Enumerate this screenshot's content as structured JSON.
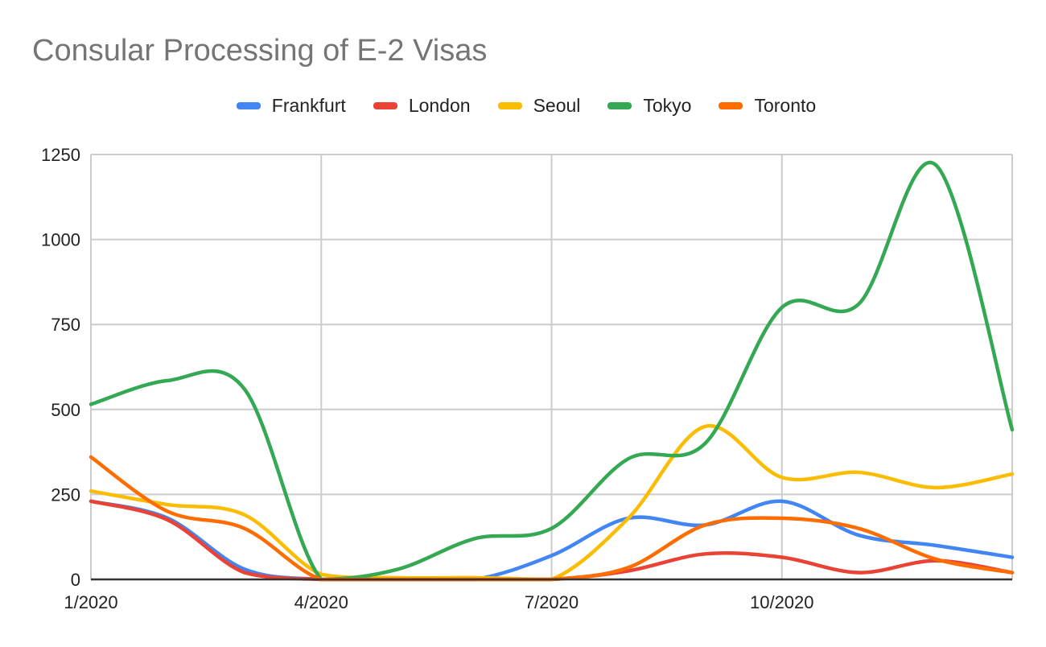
{
  "chart_data": {
    "type": "line",
    "title": "Consular Processing of E-2 Visas",
    "xlabel": "",
    "ylabel": "",
    "x": [
      "1/2020",
      "2/2020",
      "3/2020",
      "4/2020",
      "5/2020",
      "6/2020",
      "7/2020",
      "8/2020",
      "9/2020",
      "10/2020",
      "11/2020",
      "12/2020",
      "1/2021"
    ],
    "x_tick_labels": [
      "1/2020",
      "4/2020",
      "7/2020",
      "10/2020"
    ],
    "ylim": [
      0,
      1250
    ],
    "y_ticks": [
      "0",
      "250",
      "500",
      "750",
      "1000",
      "1250"
    ],
    "grid": true,
    "legend_position": "top-center",
    "series": [
      {
        "name": "Frankfurt",
        "color": "#4285F4",
        "values": [
          230,
          180,
          30,
          0,
          0,
          0,
          70,
          180,
          160,
          230,
          130,
          100,
          65
        ]
      },
      {
        "name": "London",
        "color": "#EA4335",
        "values": [
          230,
          175,
          20,
          0,
          0,
          0,
          0,
          25,
          75,
          65,
          20,
          55,
          20
        ]
      },
      {
        "name": "Seoul",
        "color": "#FBBC04",
        "values": [
          260,
          220,
          190,
          15,
          5,
          5,
          0,
          180,
          450,
          300,
          315,
          270,
          310
        ]
      },
      {
        "name": "Tokyo",
        "color": "#34A853",
        "values": [
          515,
          585,
          560,
          0,
          30,
          120,
          150,
          355,
          400,
          800,
          810,
          1220,
          440
        ]
      },
      {
        "name": "Toronto",
        "color": "#FF6D01",
        "values": [
          360,
          200,
          150,
          0,
          0,
          0,
          0,
          35,
          160,
          180,
          150,
          60,
          20
        ]
      }
    ]
  }
}
